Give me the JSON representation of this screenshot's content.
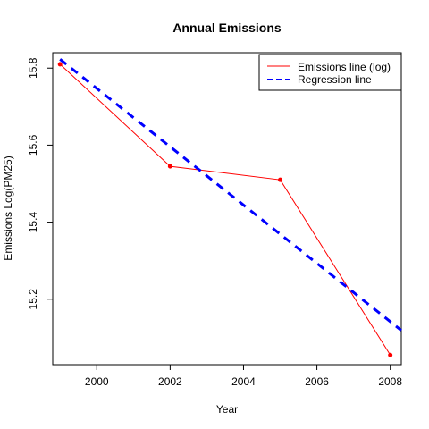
{
  "chart_data": {
    "type": "line",
    "title": "Annual Emissions",
    "xlabel": "Year",
    "ylabel": "Emissions Log(PM25)",
    "xlim": [
      1998.8,
      2008.3
    ],
    "ylim": [
      15.03,
      15.84
    ],
    "xticks": [
      2000,
      2002,
      2004,
      2006,
      2008
    ],
    "yticks": [
      15.2,
      15.4,
      15.6,
      15.8
    ],
    "xtick_labels": [
      "2000",
      "2002",
      "2004",
      "2006",
      "2008"
    ],
    "ytick_labels": [
      "15.2",
      "15.4",
      "15.6",
      "15.8"
    ],
    "grid": false,
    "legend_position": "top-right",
    "series": [
      {
        "name": "Emissions line (log)",
        "style": "solid",
        "color": "#ff0000",
        "markers": true,
        "x": [
          1999,
          2002,
          2005,
          2008
        ],
        "y": [
          15.81,
          15.545,
          15.51,
          15.055
        ]
      },
      {
        "name": "Regression line",
        "style": "dashed",
        "color": "#0000ff",
        "markers": false,
        "x": [
          1999,
          2008.3
        ],
        "y": [
          15.823,
          15.119
        ]
      }
    ]
  }
}
